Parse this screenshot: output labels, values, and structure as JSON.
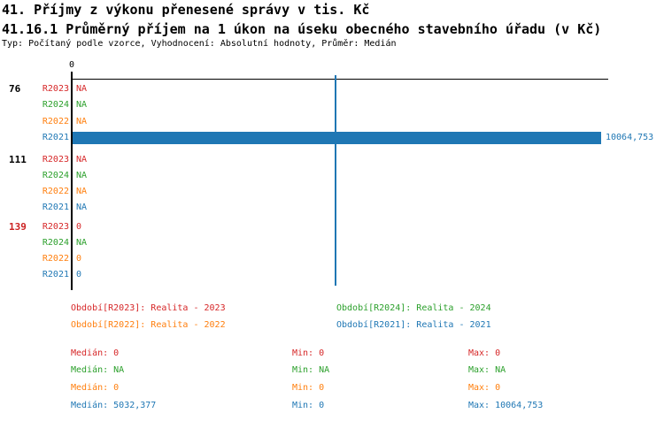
{
  "header": {
    "title_line1": "41. Příjmy z výkonu přenesené správy v tis. Kč",
    "title_line2": "41.16.1 Průměrný příjem na 1 úkon na úseku obecného stavebního úřadu (v Kč)",
    "meta_line": "Typ: Počítaný podle vzorce, Vyhodnocení: Absolutní hodnoty, Průměr: Medián"
  },
  "colors": {
    "r2023": "#d62728",
    "r2024": "#2ca02c",
    "r2022": "#ff7f0e",
    "r2021": "#1f77b4",
    "group_label_normal": "#000000",
    "group_label_alert": "#cc2222",
    "axis": "#000000",
    "gridline": "#1f77b4"
  },
  "chart_data": {
    "type": "bar",
    "orientation": "horizontal",
    "title": "41.16.1 Průměrný příjem na 1 úkon na úseku obecného stavebního úřadu (v Kč)",
    "xlim": [
      0,
      10064.753
    ],
    "x_tick_labels": [
      "0"
    ],
    "bar_max": 10064.753,
    "grid": "single vertical gridline at midpoint",
    "series_order": [
      "R2023",
      "R2024",
      "R2022",
      "R2021"
    ],
    "groups": [
      {
        "label": "76",
        "alert": false,
        "rows": [
          {
            "series": "R2023",
            "display": "NA",
            "value": null
          },
          {
            "series": "R2024",
            "display": "NA",
            "value": null
          },
          {
            "series": "R2022",
            "display": "NA",
            "value": null
          },
          {
            "series": "R2021",
            "display": "10064,753",
            "value": 10064.753
          }
        ]
      },
      {
        "label": "111",
        "alert": false,
        "rows": [
          {
            "series": "R2023",
            "display": "NA",
            "value": null
          },
          {
            "series": "R2024",
            "display": "NA",
            "value": null
          },
          {
            "series": "R2022",
            "display": "NA",
            "value": null
          },
          {
            "series": "R2021",
            "display": "NA",
            "value": null
          }
        ]
      },
      {
        "label": "139",
        "alert": true,
        "rows": [
          {
            "series": "R2023",
            "display": "0",
            "value": 0
          },
          {
            "series": "R2024",
            "display": "NA",
            "value": null
          },
          {
            "series": "R2022",
            "display": "0",
            "value": 0
          },
          {
            "series": "R2021",
            "display": "0",
            "value": 0
          }
        ]
      }
    ]
  },
  "legend": {
    "items": [
      {
        "series": "R2023",
        "label": "Období[R2023]: Realita - 2023"
      },
      {
        "series": "R2024",
        "label": "Období[R2024]: Realita - 2024"
      },
      {
        "series": "R2022",
        "label": "Období[R2022]: Realita - 2022"
      },
      {
        "series": "R2021",
        "label": "Období[R2021]: Realita - 2021"
      }
    ]
  },
  "stats": {
    "labels": {
      "median": "Medián",
      "min": "Min",
      "max": "Max"
    },
    "rows": [
      {
        "series": "R2023",
        "median": "0",
        "min": "0",
        "max": "0"
      },
      {
        "series": "R2024",
        "median": "NA",
        "min": "NA",
        "max": "NA"
      },
      {
        "series": "R2022",
        "median": "0",
        "min": "0",
        "max": "0"
      },
      {
        "series": "R2021",
        "median": "5032,377",
        "min": "0",
        "max": "10064,753"
      }
    ]
  }
}
